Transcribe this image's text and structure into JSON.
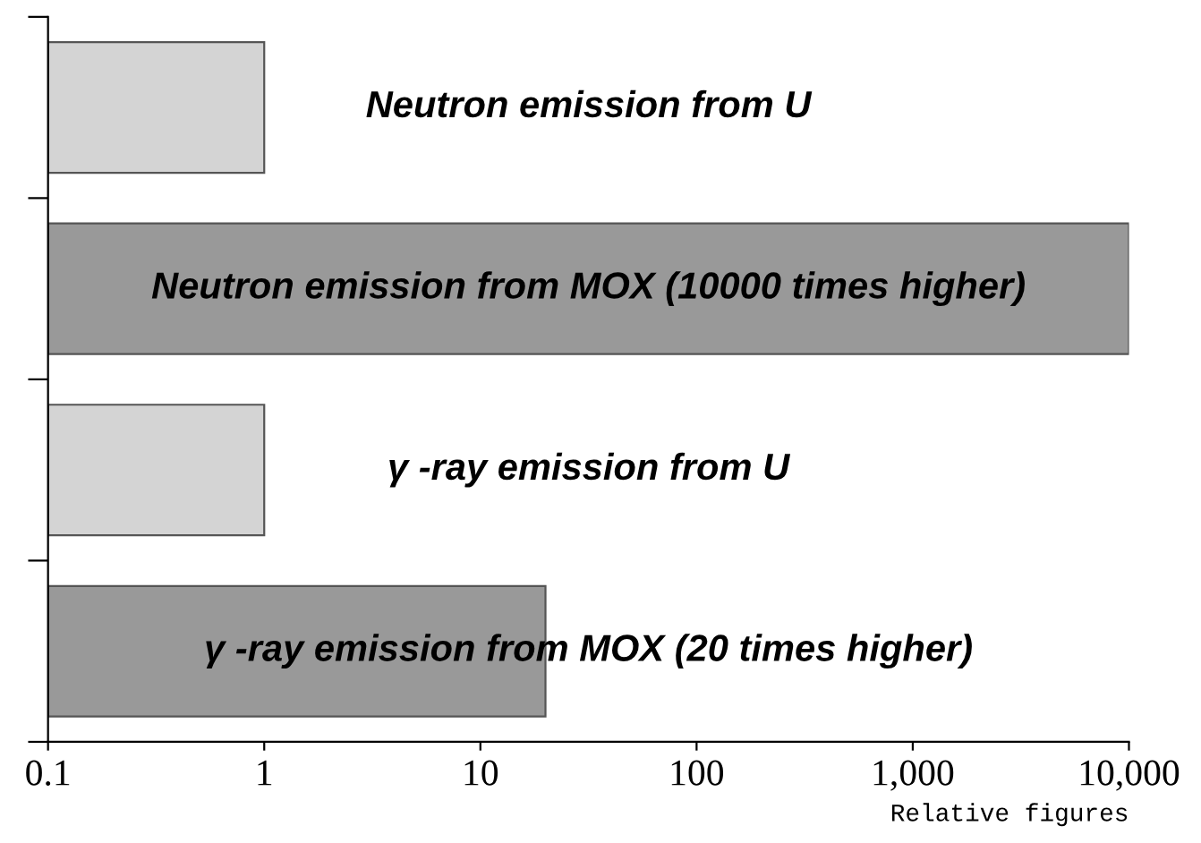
{
  "chart_data": {
    "type": "bar",
    "orientation": "horizontal",
    "log": "x",
    "categories": [
      "Neutron emission from U",
      "Neutron emission from MOX (10000 times higher)",
      "γ -ray emission from U",
      "γ -ray emission from MOX (20 times higher)"
    ],
    "values": [
      1,
      10000,
      1,
      20
    ],
    "colors": [
      "#d4d4d4",
      "#999999",
      "#d4d4d4",
      "#999999"
    ],
    "xlim": [
      0.1,
      10000
    ],
    "xticks": [
      0.1,
      1,
      10,
      100,
      {
        "value": 1000,
        "label": "1,000"
      },
      {
        "value": 10000,
        "label": "10,000"
      }
    ],
    "xlabel": "Relative figures",
    "tick_labels": "x",
    "grid": false,
    "legend": false
  }
}
